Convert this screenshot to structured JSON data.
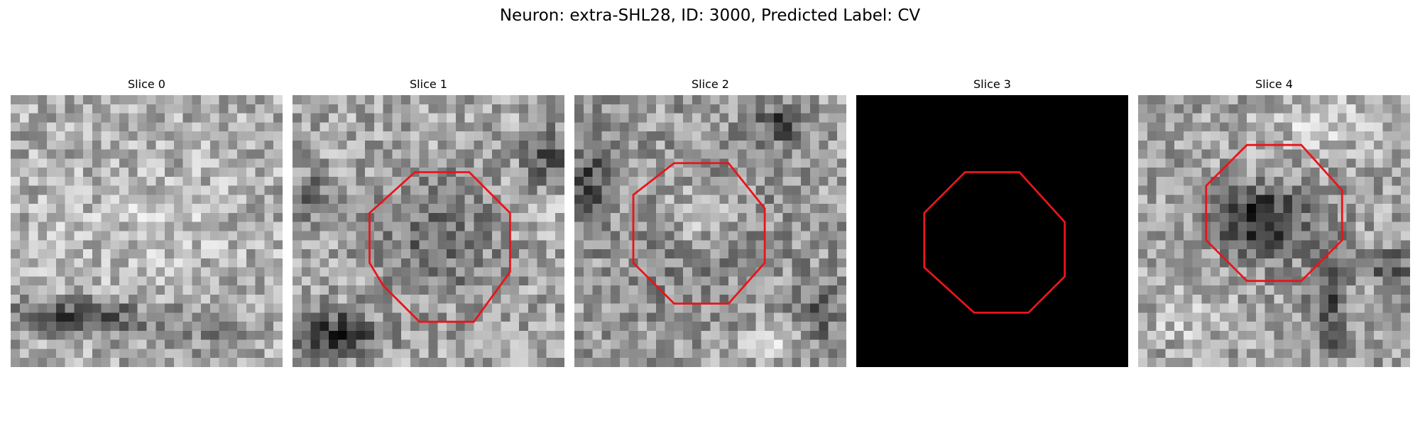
{
  "figure": {
    "title": "Neuron: extra-SHL28, ID: 3000, Predicted Label: CV"
  },
  "grid_size": 30,
  "contour_color": "#e8151b",
  "colormap": "gray",
  "panels": [
    {
      "title": "Slice 0",
      "image": "noisy-grayscale-texture",
      "contour": null,
      "seed": 11,
      "base": 0.68,
      "features": [
        {
          "cx": 7,
          "cy": 24.5,
          "rx": 7,
          "ry": 1.8,
          "amp": -0.45
        },
        {
          "cx": 20,
          "cy": 26,
          "rx": 6,
          "ry": 2.5,
          "amp": -0.15
        },
        {
          "cx": 15,
          "cy": 14,
          "rx": 10,
          "ry": 5,
          "amp": 0.08
        }
      ]
    },
    {
      "title": "Slice 1",
      "image": "noisy-grayscale-texture",
      "contour": [
        [
          13.5,
          8.5
        ],
        [
          19.5,
          8.5
        ],
        [
          24,
          13
        ],
        [
          24,
          19.5
        ],
        [
          20,
          25
        ],
        [
          14,
          25
        ],
        [
          10,
          21
        ],
        [
          8.5,
          18.5
        ],
        [
          8.5,
          13
        ]
      ],
      "seed": 23,
      "base": 0.65,
      "features": [
        {
          "cx": 16,
          "cy": 16,
          "rx": 6.5,
          "ry": 6.5,
          "amp": -0.22
        },
        {
          "cx": 5,
          "cy": 26.5,
          "rx": 4,
          "ry": 2.5,
          "amp": -0.5
        },
        {
          "cx": 28,
          "cy": 7,
          "rx": 2.5,
          "ry": 3,
          "amp": -0.3
        },
        {
          "cx": 2,
          "cy": 11,
          "rx": 2,
          "ry": 3,
          "amp": -0.2
        },
        {
          "cx": 27,
          "cy": 13,
          "rx": 3,
          "ry": 2,
          "amp": 0.15
        }
      ]
    },
    {
      "title": "Slice 2",
      "image": "noisy-grayscale-texture",
      "contour": [
        [
          11,
          7.5
        ],
        [
          17,
          7.5
        ],
        [
          21,
          12.5
        ],
        [
          21,
          18.5
        ],
        [
          17,
          23
        ],
        [
          11,
          23
        ],
        [
          6.5,
          18.5
        ],
        [
          6.5,
          11
        ]
      ],
      "seed": 37,
      "base": 0.62,
      "features": [
        {
          "cx": 13.5,
          "cy": 13.5,
          "rx": 4.8,
          "ry": 4.8,
          "amp": 0.28
        },
        {
          "cx": 13.5,
          "cy": 15,
          "rx": 7.5,
          "ry": 8,
          "amp": -0.2
        },
        {
          "cx": 1.5,
          "cy": 10,
          "rx": 2,
          "ry": 5,
          "amp": -0.35
        },
        {
          "cx": 23,
          "cy": 3,
          "rx": 3,
          "ry": 2,
          "amp": -0.35
        },
        {
          "cx": 27,
          "cy": 24,
          "rx": 2.5,
          "ry": 4,
          "amp": -0.25
        },
        {
          "cx": 22,
          "cy": 27,
          "rx": 4,
          "ry": 2,
          "amp": 0.15
        }
      ]
    },
    {
      "title": "Slice 3",
      "image": "black-empty",
      "contour": [
        [
          12,
          8.5
        ],
        [
          18,
          8.5
        ],
        [
          23,
          14
        ],
        [
          23,
          20
        ],
        [
          19,
          24
        ],
        [
          13,
          24
        ],
        [
          7.5,
          19
        ],
        [
          7.5,
          13
        ]
      ],
      "seed": 0,
      "base": 0.0,
      "features": []
    },
    {
      "title": "Slice 4",
      "image": "noisy-grayscale-texture",
      "contour": [
        [
          12,
          5.5
        ],
        [
          18,
          5.5
        ],
        [
          22.5,
          10.5
        ],
        [
          22.5,
          16
        ],
        [
          18,
          20.5
        ],
        [
          12,
          20.5
        ],
        [
          7.5,
          16
        ],
        [
          7.5,
          10
        ]
      ],
      "seed": 53,
      "base": 0.64,
      "features": [
        {
          "cx": 13,
          "cy": 13.5,
          "rx": 4.5,
          "ry": 3.2,
          "amp": -0.42
        },
        {
          "cx": 16,
          "cy": 15,
          "rx": 6,
          "ry": 5,
          "amp": -0.12
        },
        {
          "cx": 21,
          "cy": 3,
          "rx": 6,
          "ry": 3,
          "amp": 0.18
        },
        {
          "cx": 21,
          "cy": 23,
          "rx": 2,
          "ry": 7,
          "amp": -0.3
        },
        {
          "cx": 28,
          "cy": 19,
          "rx": 2.5,
          "ry": 2,
          "amp": -0.3
        },
        {
          "cx": 5,
          "cy": 25,
          "rx": 5,
          "ry": 3,
          "amp": 0.1
        }
      ]
    }
  ]
}
